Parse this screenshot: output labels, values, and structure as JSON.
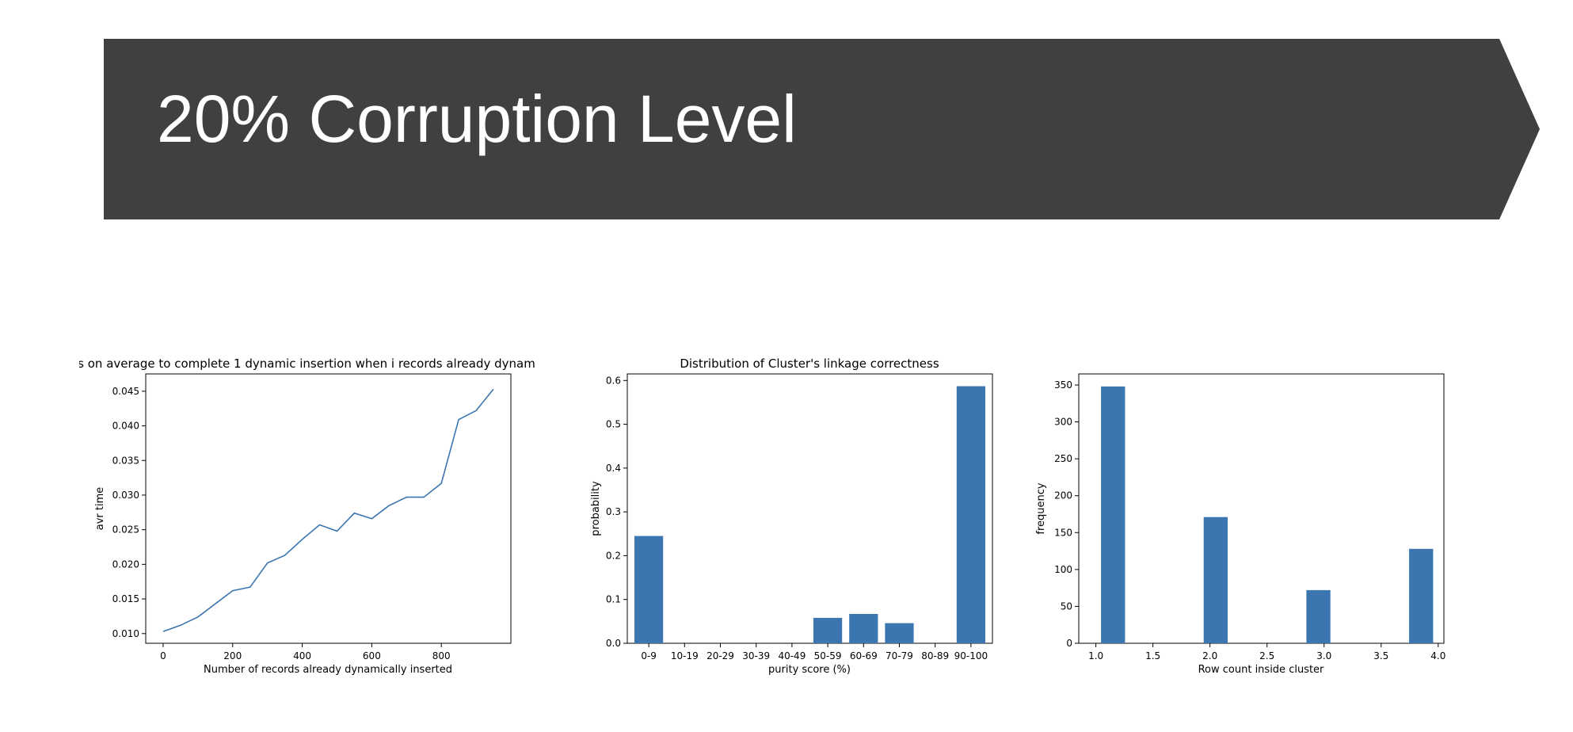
{
  "banner": {
    "title": "20% Corruption Level",
    "color": "#404040"
  },
  "colors": {
    "series": "#3b76b0",
    "axis": "#000000"
  },
  "chart_data": [
    {
      "type": "line",
      "title": "s on average to complete 1 dynamic insertion when i records already dynam",
      "xlabel": "Number of records already dynamically inserted",
      "ylabel": "avr time",
      "xlim": [
        -50,
        1000
      ],
      "ylim": [
        0.0086,
        0.0475
      ],
      "xticks": [
        0,
        200,
        400,
        600,
        800
      ],
      "xtick_labels": [
        "0",
        "200",
        "400",
        "600",
        "800"
      ],
      "yticks": [
        0.01,
        0.015,
        0.02,
        0.025,
        0.03,
        0.035,
        0.04,
        0.045
      ],
      "ytick_labels": [
        "0.010",
        "0.015",
        "0.020",
        "0.025",
        "0.030",
        "0.035",
        "0.040",
        "0.045"
      ],
      "grid": false,
      "x": [
        0,
        50,
        100,
        150,
        200,
        250,
        300,
        350,
        400,
        450,
        500,
        550,
        600,
        650,
        700,
        750,
        800,
        850,
        900,
        950
      ],
      "y": [
        0.0103,
        0.0112,
        0.0124,
        0.0143,
        0.0162,
        0.0167,
        0.0202,
        0.0213,
        0.0236,
        0.0257,
        0.0248,
        0.0274,
        0.0266,
        0.0285,
        0.0297,
        0.0297,
        0.0317,
        0.0409,
        0.0422,
        0.0453
      ]
    },
    {
      "type": "bar",
      "title": "Distribution of Cluster's linkage correctness",
      "xlabel": "purity score (%)",
      "ylabel": "probability",
      "categories": [
        "0-9",
        "10-19",
        "20-29",
        "30-39",
        "40-49",
        "50-59",
        "60-69",
        "70-79",
        "80-89",
        "90-100"
      ],
      "values": [
        0.245,
        0,
        0,
        0,
        0,
        0.058,
        0.067,
        0.046,
        0,
        0.587
      ],
      "ylim": [
        0,
        0.615
      ],
      "yticks": [
        0.0,
        0.1,
        0.2,
        0.3,
        0.4,
        0.5,
        0.6
      ],
      "ytick_labels": [
        "0.0",
        "0.1",
        "0.2",
        "0.3",
        "0.4",
        "0.5",
        "0.6"
      ],
      "grid": false
    },
    {
      "type": "bar",
      "title": "",
      "xlabel": "Row count inside cluster",
      "ylabel": "frequency",
      "x": [
        1.15,
        2.05,
        2.95,
        3.85
      ],
      "bar_width": 0.21,
      "values": [
        348,
        171,
        72,
        128
      ],
      "xlim": [
        0.85,
        4.05
      ],
      "ylim": [
        0,
        365
      ],
      "xticks": [
        1.0,
        1.5,
        2.0,
        2.5,
        3.0,
        3.5,
        4.0
      ],
      "xtick_labels": [
        "1.0",
        "1.5",
        "2.0",
        "2.5",
        "3.0",
        "3.5",
        "4.0"
      ],
      "yticks": [
        0,
        50,
        100,
        150,
        200,
        250,
        300,
        350
      ],
      "ytick_labels": [
        "0",
        "50",
        "100",
        "150",
        "200",
        "250",
        "300",
        "350"
      ],
      "grid": false
    }
  ]
}
